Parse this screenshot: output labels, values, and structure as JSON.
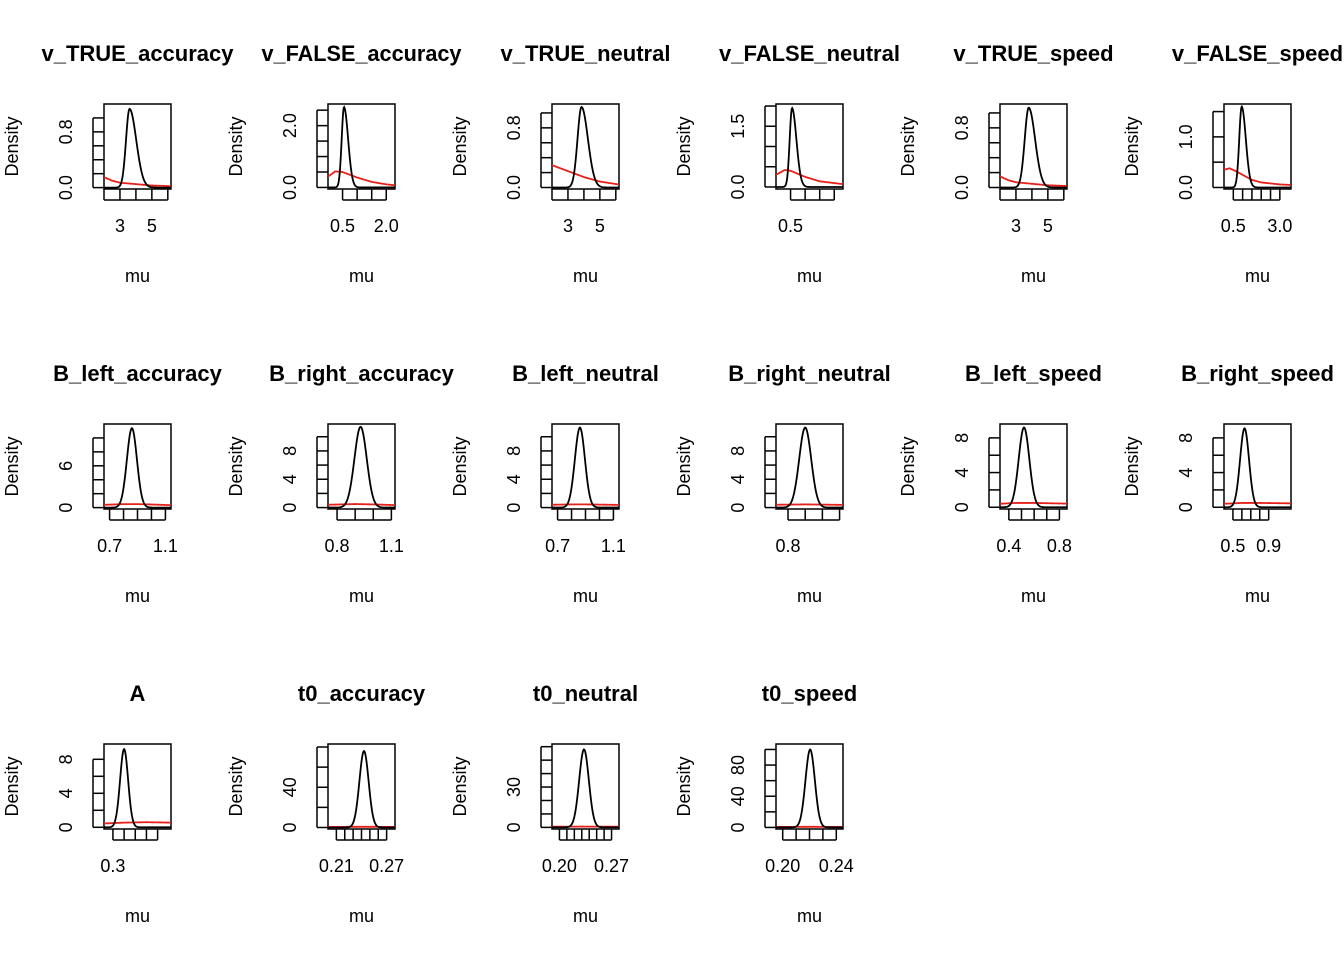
{
  "chart_data": {
    "type": "line",
    "colors": {
      "posterior": "#000000",
      "prior": "#e8201a"
    },
    "panels": [
      {
        "title": "v_TRUE_accuracy",
        "xlabel": "mu",
        "ylabel": "Density",
        "xlim": [
          2.0,
          6.2
        ],
        "ylim": [
          -0.02,
          1.2
        ],
        "xticks": [
          2,
          3,
          4,
          5,
          6
        ],
        "xtick_labels": [
          "",
          "3",
          "",
          "5",
          ""
        ],
        "yticks": [
          0.0,
          0.2,
          0.4,
          0.6,
          0.8,
          1.0
        ],
        "ytick_labels": [
          "0.0",
          "",
          "",
          "",
          "0.8",
          ""
        ],
        "post": {
          "type": "skew",
          "peak": 3.6,
          "sd_left": 0.22,
          "sd_right": 0.42,
          "height": 1.13
        },
        "prior": [
          [
            2.0,
            0.15
          ],
          [
            2.5,
            0.1
          ],
          [
            3.0,
            0.07
          ],
          [
            4.0,
            0.05
          ],
          [
            5.0,
            0.03
          ],
          [
            6.2,
            0.02
          ]
        ]
      },
      {
        "title": "v_FALSE_accuracy",
        "xlabel": "mu",
        "ylabel": "Density",
        "xlim": [
          0.0,
          2.3
        ],
        "ylim": [
          -0.05,
          2.7
        ],
        "xticks": [
          0.5,
          1.0,
          1.5,
          2.0
        ],
        "xtick_labels": [
          "0.5",
          "",
          "",
          "2.0"
        ],
        "yticks": [
          0.0,
          0.5,
          1.0,
          1.5,
          2.0,
          2.5
        ],
        "ytick_labels": [
          "0.0",
          "",
          "",
          "",
          "2.0",
          ""
        ],
        "post": {
          "type": "skew",
          "peak": 0.55,
          "sd_left": 0.08,
          "sd_right": 0.14,
          "height": 2.6
        },
        "prior": [
          [
            0.0,
            0.35
          ],
          [
            0.25,
            0.52
          ],
          [
            0.5,
            0.5
          ],
          [
            1.0,
            0.32
          ],
          [
            1.5,
            0.18
          ],
          [
            2.0,
            0.1
          ],
          [
            2.3,
            0.07
          ]
        ]
      },
      {
        "title": "v_TRUE_neutral",
        "xlabel": "mu",
        "ylabel": "Density",
        "xlim": [
          2.0,
          6.2
        ],
        "ylim": [
          -0.02,
          1.12
        ],
        "xticks": [
          2,
          3,
          4,
          5,
          6
        ],
        "xtick_labels": [
          "",
          "3",
          "",
          "5",
          ""
        ],
        "yticks": [
          0.0,
          0.2,
          0.4,
          0.6,
          0.8,
          1.0
        ],
        "ytick_labels": [
          "0.0",
          "",
          "",
          "",
          "0.8",
          ""
        ],
        "post": {
          "type": "skew",
          "peak": 3.85,
          "sd_left": 0.25,
          "sd_right": 0.4,
          "height": 1.08
        },
        "prior": [
          [
            2.0,
            0.3
          ],
          [
            3.0,
            0.22
          ],
          [
            4.0,
            0.14
          ],
          [
            5.0,
            0.08
          ],
          [
            6.2,
            0.04
          ]
        ]
      },
      {
        "title": "v_FALSE_neutral",
        "xlabel": "mu",
        "ylabel": "Density",
        "xlim": [
          0.0,
          2.3
        ],
        "ylim": [
          -0.05,
          2.05
        ],
        "xticks": [
          0.5,
          1.0,
          1.5,
          2.0
        ],
        "xtick_labels": [
          "0.5",
          "",
          "",
          ""
        ],
        "yticks": [
          0.0,
          0.5,
          1.0,
          1.5,
          2.0
        ],
        "ytick_labels": [
          "0.0",
          "",
          "",
          "1.5",
          ""
        ],
        "post": {
          "type": "skew",
          "peak": 0.55,
          "sd_left": 0.08,
          "sd_right": 0.15,
          "height": 1.95
        },
        "prior": [
          [
            0.0,
            0.3
          ],
          [
            0.3,
            0.42
          ],
          [
            0.5,
            0.4
          ],
          [
            1.0,
            0.25
          ],
          [
            1.5,
            0.14
          ],
          [
            2.3,
            0.07
          ]
        ]
      },
      {
        "title": "v_TRUE_speed",
        "xlabel": "mu",
        "ylabel": "Density",
        "xlim": [
          2.0,
          6.2
        ],
        "ylim": [
          -0.02,
          1.12
        ],
        "xticks": [
          2,
          3,
          4,
          5,
          6
        ],
        "xtick_labels": [
          "",
          "3",
          "",
          "5",
          ""
        ],
        "yticks": [
          0.0,
          0.2,
          0.4,
          0.6,
          0.8,
          1.0
        ],
        "ytick_labels": [
          "0.0",
          "",
          "",
          "",
          "0.8",
          ""
        ],
        "post": {
          "type": "skew",
          "peak": 3.8,
          "sd_left": 0.25,
          "sd_right": 0.4,
          "height": 1.07
        },
        "prior": [
          [
            2.0,
            0.15
          ],
          [
            2.5,
            0.1
          ],
          [
            3.0,
            0.07
          ],
          [
            4.0,
            0.05
          ],
          [
            5.0,
            0.03
          ],
          [
            6.2,
            0.02
          ]
        ]
      },
      {
        "title": "v_FALSE_speed",
        "xlabel": "mu",
        "ylabel": "Density",
        "xlim": [
          0.0,
          3.6
        ],
        "ylim": [
          -0.03,
          1.65
        ],
        "xticks": [
          0.5,
          1.0,
          1.5,
          2.0,
          2.5,
          3.0
        ],
        "xtick_labels": [
          "0.5",
          "",
          "",
          "",
          "",
          "3.0"
        ],
        "yticks": [
          0.0,
          0.5,
          1.0,
          1.5
        ],
        "ytick_labels": [
          "0.0",
          "",
          "1.0",
          ""
        ],
        "post": {
          "type": "skew",
          "peak": 0.95,
          "sd_left": 0.13,
          "sd_right": 0.22,
          "height": 1.6
        },
        "prior": [
          [
            0.0,
            0.35
          ],
          [
            0.3,
            0.38
          ],
          [
            0.6,
            0.33
          ],
          [
            1.0,
            0.25
          ],
          [
            1.5,
            0.15
          ],
          [
            2.0,
            0.1
          ],
          [
            3.0,
            0.06
          ],
          [
            3.6,
            0.05
          ]
        ]
      },
      {
        "title": "B_left_accuracy",
        "xlabel": "mu",
        "ylabel": "Density",
        "xlim": [
          0.66,
          1.14
        ],
        "ylim": [
          -0.2,
          12.0
        ],
        "xticks": [
          0.7,
          0.8,
          0.9,
          1.0,
          1.1
        ],
        "xtick_labels": [
          "0.7",
          "",
          "",
          "",
          "1.1"
        ],
        "yticks": [
          0,
          2,
          4,
          6,
          8,
          10
        ],
        "ytick_labels": [
          "0",
          "",
          "",
          "6",
          "",
          ""
        ],
        "post": {
          "type": "normal",
          "mean": 0.86,
          "sd": 0.036,
          "height": 11.4
        },
        "prior": [
          [
            0.66,
            0.4
          ],
          [
            0.8,
            0.5
          ],
          [
            0.9,
            0.5
          ],
          [
            1.0,
            0.45
          ],
          [
            1.14,
            0.35
          ]
        ]
      },
      {
        "title": "B_right_accuracy",
        "xlabel": "mu",
        "ylabel": "Density",
        "xlim": [
          0.75,
          1.12
        ],
        "ylim": [
          -0.2,
          11.8
        ],
        "xticks": [
          0.8,
          0.9,
          1.0,
          1.1
        ],
        "xtick_labels": [
          "0.8",
          "",
          "",
          "1.1"
        ],
        "yticks": [
          0,
          2,
          4,
          6,
          8,
          10
        ],
        "ytick_labels": [
          "0",
          "",
          "4",
          "",
          "8",
          ""
        ],
        "post": {
          "type": "normal",
          "mean": 0.93,
          "sd": 0.034,
          "height": 11.4
        },
        "prior": [
          [
            0.75,
            0.4
          ],
          [
            0.9,
            0.5
          ],
          [
            1.0,
            0.45
          ],
          [
            1.12,
            0.35
          ]
        ]
      },
      {
        "title": "B_left_neutral",
        "xlabel": "mu",
        "ylabel": "Density",
        "xlim": [
          0.66,
          1.14
        ],
        "ylim": [
          -0.2,
          11.8
        ],
        "xticks": [
          0.7,
          0.8,
          0.9,
          1.0,
          1.1
        ],
        "xtick_labels": [
          "0.7",
          "",
          "",
          "",
          "1.1"
        ],
        "yticks": [
          0,
          2,
          4,
          6,
          8,
          10
        ],
        "ytick_labels": [
          "0",
          "",
          "4",
          "",
          "8",
          ""
        ],
        "post": {
          "type": "normal",
          "mean": 0.86,
          "sd": 0.036,
          "height": 11.3
        },
        "prior": [
          [
            0.66,
            0.4
          ],
          [
            0.8,
            0.45
          ],
          [
            0.9,
            0.45
          ],
          [
            1.0,
            0.42
          ],
          [
            1.14,
            0.38
          ]
        ]
      },
      {
        "title": "B_right_neutral",
        "xlabel": "mu",
        "ylabel": "Density",
        "xlim": [
          0.73,
          1.12
        ],
        "ylim": [
          -0.2,
          11.8
        ],
        "xticks": [
          0.8,
          0.9,
          1.0,
          1.1
        ],
        "xtick_labels": [
          "0.8",
          "",
          "",
          ""
        ],
        "yticks": [
          0,
          2,
          4,
          6,
          8,
          10
        ],
        "ytick_labels": [
          "0",
          "",
          "4",
          "",
          "8",
          ""
        ],
        "post": {
          "type": "normal",
          "mean": 0.9,
          "sd": 0.035,
          "height": 11.3
        },
        "prior": [
          [
            0.73,
            0.4
          ],
          [
            0.9,
            0.45
          ],
          [
            1.0,
            0.42
          ],
          [
            1.12,
            0.38
          ]
        ]
      },
      {
        "title": "B_left_speed",
        "xlabel": "mu",
        "ylabel": "Density",
        "xlim": [
          0.33,
          0.86
        ],
        "ylim": [
          -0.2,
          9.6
        ],
        "xticks": [
          0.4,
          0.5,
          0.6,
          0.7,
          0.8
        ],
        "xtick_labels": [
          "0.4",
          "",
          "",
          "",
          "0.8"
        ],
        "yticks": [
          0,
          2,
          4,
          6,
          8
        ],
        "ytick_labels": [
          "0",
          "",
          "4",
          "",
          "8"
        ],
        "post": {
          "type": "normal",
          "mean": 0.52,
          "sd": 0.042,
          "height": 9.2
        },
        "prior": [
          [
            0.33,
            0.4
          ],
          [
            0.45,
            0.5
          ],
          [
            0.6,
            0.5
          ],
          [
            0.86,
            0.42
          ]
        ]
      },
      {
        "title": "B_right_speed",
        "xlabel": "mu",
        "ylabel": "Density",
        "xlim": [
          0.4,
          1.15
        ],
        "ylim": [
          -0.2,
          9.6
        ],
        "xticks": [
          0.5,
          0.6,
          0.7,
          0.8,
          0.9
        ],
        "xtick_labels": [
          "0.5",
          "",
          "",
          "",
          "0.9"
        ],
        "yticks": [
          0,
          2,
          4,
          6,
          8
        ],
        "ytick_labels": [
          "0",
          "",
          "4",
          "",
          "8"
        ],
        "post": {
          "type": "normal",
          "mean": 0.63,
          "sd": 0.05,
          "height": 9.1
        },
        "prior": [
          [
            0.4,
            0.4
          ],
          [
            0.6,
            0.5
          ],
          [
            0.8,
            0.5
          ],
          [
            1.15,
            0.45
          ]
        ]
      },
      {
        "title": "A",
        "xlabel": "mu",
        "ylabel": "Density",
        "xlim": [
          0.26,
          0.56
        ],
        "ylim": [
          -0.2,
          9.8
        ],
        "xticks": [
          0.3,
          0.35,
          0.4,
          0.45,
          0.5
        ],
        "xtick_labels": [
          "0.3",
          "",
          "",
          "",
          ""
        ],
        "yticks": [
          0,
          2,
          4,
          6,
          8
        ],
        "ytick_labels": [
          "0",
          "",
          "4",
          "",
          "8"
        ],
        "post": {
          "type": "normal",
          "mean": 0.35,
          "sd": 0.018,
          "height": 9.2
        },
        "prior": [
          [
            0.26,
            0.45
          ],
          [
            0.35,
            0.55
          ],
          [
            0.45,
            0.6
          ],
          [
            0.56,
            0.55
          ]
        ]
      },
      {
        "title": "t0_accuracy",
        "xlabel": "mu",
        "ylabel": "Density",
        "xlim": [
          0.2,
          0.28
        ],
        "ylim": [
          -1.5,
          83.0
        ],
        "xticks": [
          0.21,
          0.22,
          0.23,
          0.24,
          0.25,
          0.26,
          0.27
        ],
        "xtick_labels": [
          "0.21",
          "",
          "",
          "",
          "",
          "",
          "0.27"
        ],
        "yticks": [
          0,
          20,
          40,
          60,
          80
        ],
        "ytick_labels": [
          "0",
          "",
          "40",
          "",
          ""
        ],
        "post": {
          "type": "normal",
          "mean": 0.243,
          "sd": 0.0055,
          "height": 76
        },
        "prior": [
          [
            0.2,
            0.6
          ],
          [
            0.24,
            0.7
          ],
          [
            0.28,
            0.6
          ]
        ]
      },
      {
        "title": "t0_neutral",
        "xlabel": "mu",
        "ylabel": "Density",
        "xlim": [
          0.19,
          0.28
        ],
        "ylim": [
          -1.2,
          62.0
        ],
        "xticks": [
          0.2,
          0.21,
          0.22,
          0.23,
          0.24,
          0.25,
          0.26,
          0.27
        ],
        "xtick_labels": [
          "0.20",
          "",
          "",
          "",
          "",
          "",
          "",
          "0.27"
        ],
        "yticks": [
          0,
          10,
          20,
          30,
          40,
          50,
          60
        ],
        "ytick_labels": [
          "0",
          "",
          "",
          "30",
          "",
          "",
          ""
        ],
        "post": {
          "type": "normal",
          "mean": 0.233,
          "sd": 0.0065,
          "height": 58
        },
        "prior": [
          [
            0.19,
            0.5
          ],
          [
            0.23,
            0.6
          ],
          [
            0.28,
            0.5
          ]
        ]
      },
      {
        "title": "t0_speed",
        "xlabel": "mu",
        "ylabel": "Density",
        "xlim": [
          0.195,
          0.245
        ],
        "ylim": [
          -2.0,
          107.0
        ],
        "xticks": [
          0.2,
          0.21,
          0.22,
          0.23,
          0.24
        ],
        "xtick_labels": [
          "0.20",
          "",
          "",
          "",
          "0.24"
        ],
        "yticks": [
          0,
          20,
          40,
          60,
          80,
          100
        ],
        "ytick_labels": [
          "0",
          "",
          "40",
          "",
          "80",
          ""
        ],
        "post": {
          "type": "normal",
          "mean": 0.2205,
          "sd": 0.0035,
          "height": 100
        },
        "prior": [
          [
            0.195,
            0.7
          ],
          [
            0.22,
            0.8
          ],
          [
            0.245,
            0.7
          ]
        ]
      }
    ]
  }
}
